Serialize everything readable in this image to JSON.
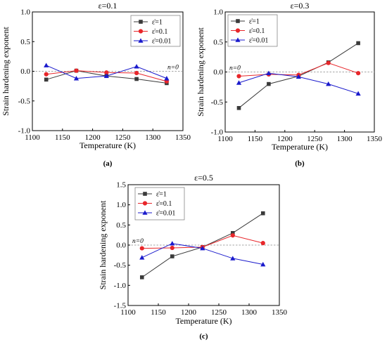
{
  "colors": {
    "black": "#3a3a3a",
    "red": "#e8262a",
    "blue": "#1a1acc",
    "zero_line": "#888888"
  },
  "reference_label": "n=0",
  "chart_data": [
    {
      "type": "line",
      "panel": "(a)",
      "title": "ε=0.1",
      "xlabel": "Temperature (K)",
      "ylabel": "Strain hardening exponent",
      "xlim": [
        1100,
        1350
      ],
      "ylim": [
        -1.0,
        1.0
      ],
      "xticks": [
        1100,
        1150,
        1200,
        1250,
        1300,
        1350
      ],
      "yticks": [
        -1.0,
        -0.5,
        0.0,
        0.5,
        1.0
      ],
      "ytick_labels": [
        "-1.0",
        "-0.5",
        "0.0",
        "0.5",
        "1.0"
      ],
      "x": [
        1123,
        1173,
        1223,
        1273,
        1323
      ],
      "legend_position": "top-right",
      "series": [
        {
          "name": "ε̇=1",
          "marker": "square",
          "color": "#3a3a3a",
          "values": [
            -0.14,
            0.01,
            -0.08,
            -0.13,
            -0.2
          ]
        },
        {
          "name": "ε̇=0.1",
          "marker": "circle",
          "color": "#e8262a",
          "values": [
            -0.05,
            0.01,
            -0.02,
            -0.03,
            -0.17
          ]
        },
        {
          "name": "ε̇=0.01",
          "marker": "triangle",
          "color": "#1a1acc",
          "values": [
            0.1,
            -0.12,
            -0.08,
            0.08,
            -0.12
          ]
        }
      ]
    },
    {
      "type": "line",
      "panel": "(b)",
      "title": "ε=0.3",
      "xlabel": "Temperature (K)",
      "ylabel": "Strain hardening exponent",
      "xlim": [
        1100,
        1350
      ],
      "ylim": [
        -1.0,
        1.0
      ],
      "xticks": [
        1100,
        1150,
        1200,
        1250,
        1300,
        1350
      ],
      "yticks": [
        -1.0,
        -0.5,
        0.0,
        0.5,
        1.0
      ],
      "ytick_labels": [
        "-1.0",
        "-0.5",
        "0.0",
        "0.5",
        "1.0"
      ],
      "x": [
        1123,
        1173,
        1223,
        1273,
        1323
      ],
      "legend_position": "top-left",
      "series": [
        {
          "name": "ε̇=1",
          "marker": "square",
          "color": "#3a3a3a",
          "values": [
            -0.6,
            -0.2,
            -0.07,
            0.16,
            0.48
          ]
        },
        {
          "name": "ε̇=0.1",
          "marker": "circle",
          "color": "#e8262a",
          "values": [
            -0.07,
            -0.04,
            -0.05,
            0.15,
            -0.02
          ]
        },
        {
          "name": "ε̇=0.01",
          "marker": "triangle",
          "color": "#1a1acc",
          "values": [
            -0.18,
            -0.02,
            -0.08,
            -0.2,
            -0.36
          ]
        }
      ]
    },
    {
      "type": "line",
      "panel": "(c)",
      "title": "ε=0.5",
      "xlabel": "Temperature (K)",
      "ylabel": "Strain hardening exponent",
      "xlim": [
        1100,
        1350
      ],
      "ylim": [
        -1.5,
        1.5
      ],
      "xticks": [
        1100,
        1150,
        1200,
        1250,
        1300,
        1350
      ],
      "yticks": [
        -1.5,
        -1.0,
        -0.5,
        0.0,
        0.5,
        1.0,
        1.5
      ],
      "ytick_labels": [
        "-1.5",
        "-1.0",
        "-0.5",
        "0.0",
        "0.5",
        "1.0",
        "1.5"
      ],
      "x": [
        1123,
        1173,
        1223,
        1273,
        1323
      ],
      "legend_position": "top-left",
      "series": [
        {
          "name": "ε̇=1",
          "marker": "square",
          "color": "#3a3a3a",
          "values": [
            -0.8,
            -0.28,
            -0.05,
            0.3,
            0.79
          ]
        },
        {
          "name": "ε̇=0.1",
          "marker": "circle",
          "color": "#e8262a",
          "values": [
            -0.08,
            -0.07,
            -0.05,
            0.24,
            0.05
          ]
        },
        {
          "name": "ε̇=0.01",
          "marker": "triangle",
          "color": "#1a1acc",
          "values": [
            -0.31,
            0.04,
            -0.08,
            -0.33,
            -0.48
          ]
        }
      ]
    }
  ]
}
